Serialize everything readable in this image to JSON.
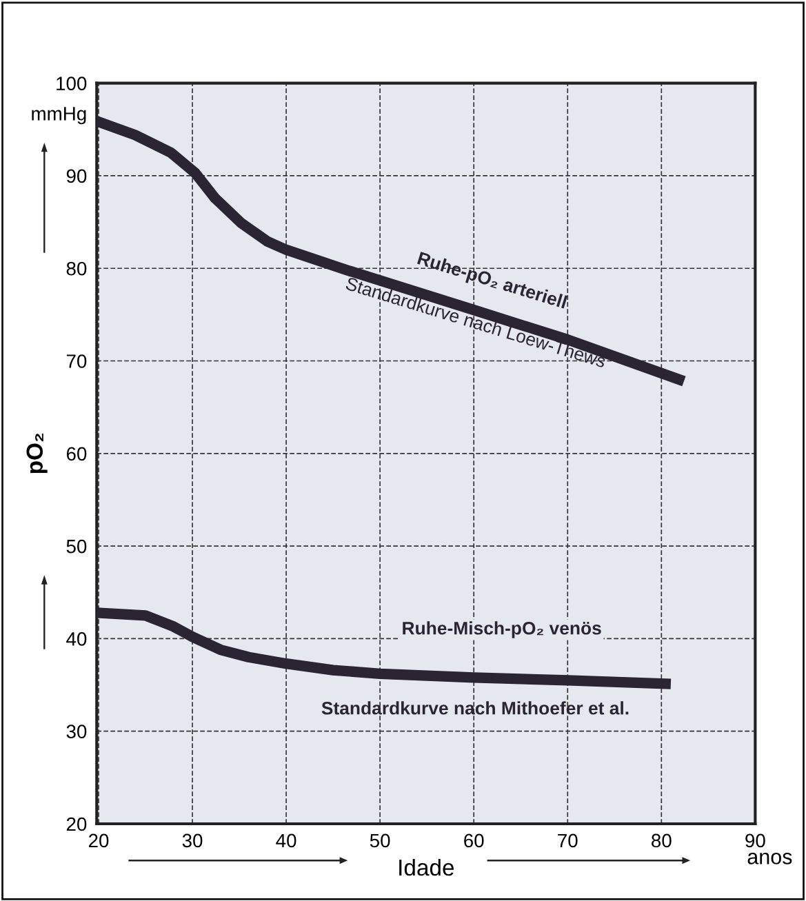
{
  "chart_data": {
    "type": "line",
    "xlabel": "Idade",
    "ylabel": "pO₂",
    "xlim": [
      19.8,
      90
    ],
    "xticks": [
      20,
      30,
      40,
      50,
      60,
      70,
      80,
      90
    ],
    "ylim": [
      20,
      100
    ],
    "yticks": [
      20,
      30,
      40,
      50,
      60,
      70,
      80,
      90,
      100
    ],
    "grid": true,
    "line_style": "solid",
    "marker": "none",
    "series": [
      {
        "color": "#2a2433",
        "x": [
          19.8,
          23.9,
          27.7,
          30.3,
          32.4,
          35.2,
          38,
          40,
          46.5,
          60,
          70,
          82.4
        ],
        "values": [
          95.9,
          94.4,
          92.5,
          90.3,
          87.6,
          84.9,
          82.9,
          82,
          79.8,
          75.5,
          72.3,
          67.8
        ]
      },
      {
        "color": "#2a2433",
        "x": [
          19.8,
          25,
          28,
          30,
          33,
          36,
          40,
          45,
          50,
          60,
          70,
          81
        ],
        "values": [
          42.8,
          42.5,
          41.3,
          40.2,
          38.8,
          38,
          37.3,
          36.6,
          36.2,
          35.8,
          35.5,
          35.1
        ]
      }
    ],
    "annotations": [
      "Ruhe-pO₂ arteriell",
      "Standardkurve nach Loew-Thews",
      "Ruhe-Misch-pO₂ venös",
      "Standardkurve nach Mithoefer et al.",
      "mmHg",
      "anos"
    ]
  }
}
